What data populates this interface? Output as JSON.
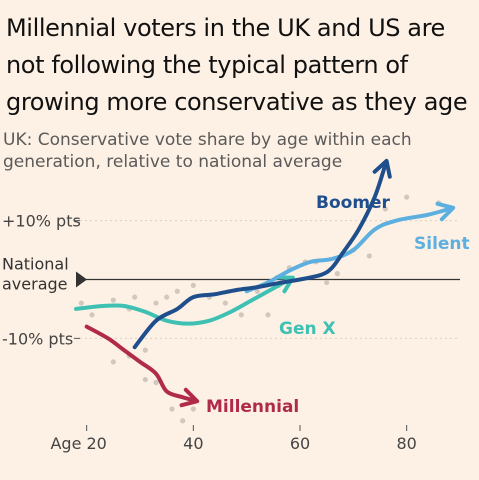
{
  "title": "Millennial voters in the UK and US are not following the typical pattern of growing more conservative as they age",
  "subtitle": "UK: Conservative vote share by age within each generation, relative to national average",
  "colors": {
    "background": "#fdf1e5",
    "Boomer": "#1f4e8c",
    "Silent": "#5dafe0",
    "Gen X": "#3ec0b3",
    "Millennial": "#b02a4a",
    "national_line": "#333333"
  },
  "chart_data": {
    "type": "line",
    "y_unit": "pts relative to national average",
    "xlim": [
      18,
      90
    ],
    "ylim": [
      -22,
      22
    ],
    "x_ticks": [
      20,
      40,
      60,
      80
    ],
    "x_tick_labels": [
      "Age 20",
      "40",
      "60",
      "80"
    ],
    "y_ticks": [
      10,
      -10
    ],
    "y_tick_labels": [
      "+10% pts",
      "-10% pts"
    ],
    "reference_line": {
      "y": 0,
      "label_line1": "National",
      "label_line2": "average"
    },
    "series": [
      {
        "name": "Boomer",
        "points": [
          [
            29,
            -11.5
          ],
          [
            33,
            -7
          ],
          [
            37,
            -5
          ],
          [
            40,
            -3
          ],
          [
            44,
            -2.5
          ],
          [
            48,
            -1.8
          ],
          [
            52,
            -1.3
          ],
          [
            56,
            -0.6
          ],
          [
            60,
            0
          ],
          [
            64,
            0.8
          ],
          [
            66,
            2
          ],
          [
            68,
            4.5
          ],
          [
            71,
            8.5
          ],
          [
            74,
            14
          ],
          [
            76,
            19.5
          ]
        ]
      },
      {
        "name": "Silent",
        "points": [
          [
            50,
            -2
          ],
          [
            54,
            -0.5
          ],
          [
            58,
            1.5
          ],
          [
            62,
            3
          ],
          [
            66,
            3.5
          ],
          [
            70,
            5
          ],
          [
            74,
            8.5
          ],
          [
            78,
            10
          ],
          [
            84,
            11
          ],
          [
            88,
            12
          ]
        ]
      },
      {
        "name": "Gen X",
        "points": [
          [
            18,
            -5
          ],
          [
            23,
            -4.5
          ],
          [
            27,
            -4.5
          ],
          [
            31,
            -5.5
          ],
          [
            35,
            -7
          ],
          [
            39,
            -7.5
          ],
          [
            43,
            -7
          ],
          [
            47,
            -5.5
          ],
          [
            51,
            -3.5
          ],
          [
            55,
            -1.5
          ],
          [
            58,
            0
          ]
        ]
      },
      {
        "name": "Millennial",
        "points": [
          [
            20,
            -8
          ],
          [
            24,
            -10
          ],
          [
            27,
            -12
          ],
          [
            30,
            -14
          ],
          [
            33,
            -16
          ],
          [
            35,
            -19
          ],
          [
            38,
            -20
          ],
          [
            40,
            -20.5
          ]
        ]
      }
    ],
    "scatter": [
      [
        19,
        -4
      ],
      [
        21,
        -6
      ],
      [
        25,
        -3.5
      ],
      [
        28,
        -5
      ],
      [
        29,
        -3
      ],
      [
        33,
        -4
      ],
      [
        35,
        -3
      ],
      [
        37,
        -2
      ],
      [
        40,
        -1
      ],
      [
        43,
        -3
      ],
      [
        46,
        -4
      ],
      [
        49,
        -6
      ],
      [
        52,
        -2
      ],
      [
        54,
        -6
      ],
      [
        56,
        -1
      ],
      [
        58,
        2
      ],
      [
        61,
        3
      ],
      [
        63,
        3
      ],
      [
        65,
        -0.5
      ],
      [
        67,
        1
      ],
      [
        70,
        5
      ],
      [
        73,
        4
      ],
      [
        76,
        12
      ],
      [
        80,
        14
      ],
      [
        86,
        13
      ],
      [
        25,
        -14
      ],
      [
        28,
        -13
      ],
      [
        31,
        -17
      ],
      [
        33,
        -17.5
      ],
      [
        38,
        -24
      ],
      [
        40,
        -22
      ],
      [
        36,
        -22
      ],
      [
        31,
        -12
      ]
    ]
  }
}
